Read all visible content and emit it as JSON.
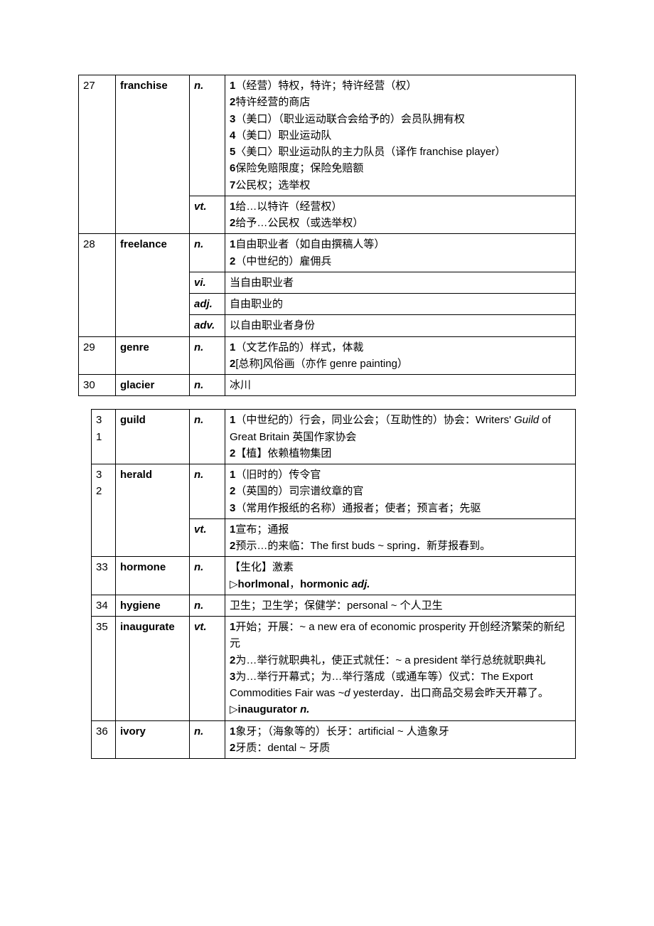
{
  "colors": {
    "border": "#000000",
    "text": "#000000",
    "background": "#ffffff"
  },
  "table1": {
    "rows": [
      {
        "num": "27",
        "word": "franchise",
        "pos": "n.",
        "def_html": "<span class='num'>1</span>（经营）特权，特许；特许经营（权）<br><span class='num'>2</span>特许经营的商店<br><span class='num'>3</span>（美口）（职业运动联合会给予的）会员队拥有权<br><span class='num'>4</span>（美口）职业运动队<br><span class='num'>5</span>〈美口〉职业运动队的主力队员（译作 franchise player）<br><span class='num'>6</span>保险免赔限度；保险免赔额<br><span class='num'>7</span>公民权；选举权"
      },
      {
        "num": "",
        "word": "",
        "pos": "vt.",
        "def_html": "<span class='num'>1</span>给…以特许（经营权）<br><span class='num'>2</span>给予…公民权（或选举权）"
      },
      {
        "num": "28",
        "word": "freelance",
        "pos": "n.",
        "def_html": "<span class='num'>1</span>自由职业者（如自由撰稿人等）<br><span class='num'>2</span>（中世纪的）雇佣兵"
      },
      {
        "num": "",
        "word": "",
        "pos": "vi.",
        "def_html": "当自由职业者"
      },
      {
        "num": "",
        "word": "",
        "pos": "adj.",
        "def_html": "自由职业的"
      },
      {
        "num": "",
        "word": "",
        "pos": "adv.",
        "def_html": "以自由职业者身份"
      },
      {
        "num": "29",
        "word": "genre",
        "pos": "n.",
        "def_html": "<span class='num'>1</span>（文艺作品的）样式，体裁<br><span class='num'>2</span>[总称]风俗画（亦作 genre painting）"
      },
      {
        "num": "30",
        "word": "glacier",
        "pos": "n.",
        "def_html": "冰川"
      }
    ],
    "rowspans": {
      "0": {
        "num": 2,
        "word": 2
      },
      "2": {
        "num": 4,
        "word": 4
      }
    }
  },
  "table2": {
    "rows": [
      {
        "num": "31",
        "word": "guild",
        "pos": "n.",
        "def_html": "<span class='num'>1</span>（中世纪的）行会，同业公会；（互助性的）协会：Writers' <span class='italic'>Guild</span> of Great Britain 英国作家协会<br><span class='num'>2</span>【植】依赖植物集团"
      },
      {
        "num": "32",
        "word": "herald",
        "pos": "n.",
        "def_html": "<span class='num'>1</span>（旧时的）传令官<br><span class='num'>2</span>（英国的）司宗谱纹章的官<br><span class='num'>3</span>（常用作报纸的名称）通报者；使者；预言者；先驱"
      },
      {
        "num": "",
        "word": "",
        "pos": "vt.",
        "def_html": "<span class='num'>1</span>宣布；通报<br><span class='num'>2</span>预示…的来临：The first buds ~ spring．新芽报春到。"
      },
      {
        "num": "33",
        "word": "hormone",
        "pos": "n.",
        "def_html": "【生化】激素<br><span class='tri'>▷</span><span class='bold'>horlmonal</span>，<span class='bold'>hormonic</span> <span class='pos'>adj.</span>"
      },
      {
        "num": "34",
        "word": "hygiene",
        "pos": "n.",
        "def_html": "卫生；卫生学；保健学：personal ~ 个人卫生"
      },
      {
        "num": "35",
        "word": "inaugurate",
        "pos": "vt.",
        "def_html": "<span class='num'>1</span>开始；开展：~ a new era of economic prosperity 开创经济繁荣的新纪元<br><span class='num'>2</span>为…举行就职典礼，使正式就任：~ a president 举行总统就职典礼<br><span class='num'>3</span>为…举行开幕式；为…举行落成（或通车等）仪式：The Export Commodities Fair was <span class='italic'>~d</span> yesterday．出口商品交易会昨天开幕了。<br><span class='tri'>▷</span><span class='bold'>inaugurator</span> <span class='pos'>n.</span>"
      },
      {
        "num": "36",
        "word": "ivory",
        "pos": "n.",
        "def_html": "<span class='num'>1</span>象牙；（海象等的）长牙：artificial ~ 人造象牙<br><span class='num'>2</span>牙质：dental ~ 牙质"
      }
    ],
    "rowspans": {
      "1": {
        "num": 2,
        "word": 2
      }
    },
    "vertical_nums": [
      "31",
      "32"
    ]
  }
}
